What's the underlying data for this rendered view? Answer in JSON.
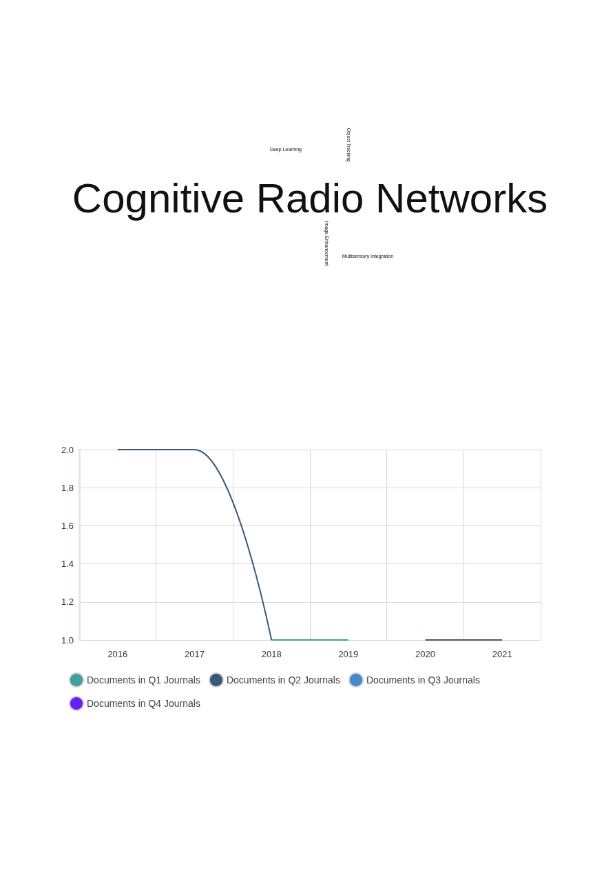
{
  "chart_data": [
    {
      "type": "other",
      "annotations": [
        "Deep Learning",
        "Object Tracking",
        "Cognitive Radio Networks",
        "Image Enhancement",
        "Multisensory Integration"
      ]
    },
    {
      "type": "line",
      "categories": [
        "2016",
        "2017",
        "2018",
        "2019",
        "2020",
        "2021"
      ],
      "series": [
        {
          "name": "Documents in Q1 Journals",
          "color": "#40a09a",
          "values": [
            null,
            null,
            1,
            1,
            null,
            null
          ]
        },
        {
          "name": "Documents in Q2 Journals",
          "color": "#3a5878",
          "values": [
            2,
            2,
            1,
            null,
            1,
            1
          ]
        },
        {
          "name": "Documents in Q3 Journals",
          "color": "#4488d0",
          "values": [
            null,
            null,
            null,
            null,
            null,
            null
          ]
        },
        {
          "name": "Documents in Q4 Journals",
          "color": "#6a1ff5",
          "values": [
            null,
            null,
            null,
            null,
            null,
            null
          ]
        }
      ],
      "ylim": [
        1,
        2
      ],
      "yticks": [
        {
          "value": 1,
          "label": "1.0"
        },
        {
          "value": 1.2,
          "label": "1.2"
        },
        {
          "value": 1.4,
          "label": "1.4"
        },
        {
          "value": 1.6,
          "label": "1.6"
        },
        {
          "value": 1.8,
          "label": "1.8"
        },
        {
          "value": 2,
          "label": "2.0"
        }
      ],
      "grid": true,
      "legend": "bottom",
      "marker": "none",
      "line_style": "solid"
    }
  ]
}
